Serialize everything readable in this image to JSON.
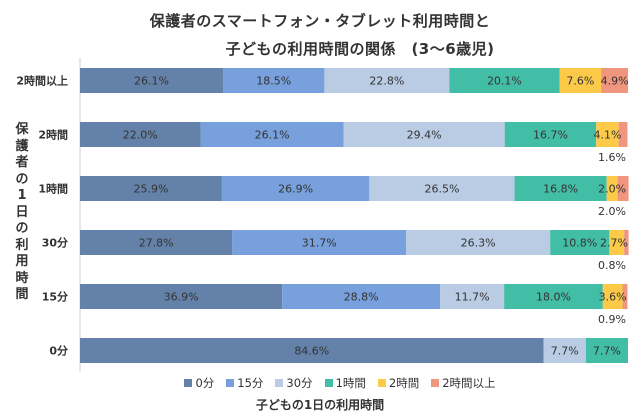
{
  "chart_data": {
    "type": "bar",
    "orientation": "horizontal",
    "stacked": true,
    "title": "保護者のスマートフォン・タブレット利用時間と",
    "title_line2": "子どもの利用時間の関係　(3〜6歳児)",
    "xlabel": "子どもの1日の利用時間",
    "ylabel": "保護者の1日の利用時間",
    "categories": [
      "2時間以上",
      "2時間",
      "1時間",
      "30分",
      "15分",
      "0分"
    ],
    "series": [
      {
        "name": "0分",
        "color": "#6482a9",
        "values": [
          26.1,
          22.0,
          25.9,
          27.8,
          36.9,
          84.6
        ]
      },
      {
        "name": "15分",
        "color": "#77a0dc",
        "values": [
          18.5,
          26.1,
          26.9,
          31.7,
          28.8,
          0
        ]
      },
      {
        "name": "30分",
        "color": "#b9cce4",
        "values": [
          22.8,
          29.4,
          26.5,
          26.3,
          11.7,
          7.7
        ]
      },
      {
        "name": "1時間",
        "color": "#43bea6",
        "values": [
          20.1,
          16.7,
          16.8,
          10.8,
          18.0,
          7.7
        ]
      },
      {
        "name": "2時間",
        "color": "#fcca48",
        "values": [
          7.6,
          4.1,
          2.0,
          2.7,
          3.6,
          0
        ]
      },
      {
        "name": "2時間以上",
        "color": "#f0957e",
        "values": [
          4.9,
          1.6,
          2.0,
          0.8,
          0.9,
          0
        ]
      }
    ],
    "labels": [
      [
        "26.1%",
        "18.5%",
        "22.8%",
        "20.1%",
        "7.6%",
        "4.9%"
      ],
      [
        "22.0%",
        "26.1%",
        "29.4%",
        "16.7%",
        "4.1%",
        "1.6%"
      ],
      [
        "25.9%",
        "26.9%",
        "26.5%",
        "16.8%",
        "2.0%",
        "2.0%"
      ],
      [
        "27.8%",
        "31.7%",
        "26.3%",
        "10.8%",
        "2.7%",
        "0.8%"
      ],
      [
        "36.9%",
        "28.8%",
        "11.7%",
        "18.0%",
        "3.6%",
        "0.9%"
      ],
      [
        "84.6%",
        "",
        "7.7%",
        "7.7%",
        "",
        ""
      ]
    ],
    "xlim": [
      0,
      100
    ],
    "legend_position": "bottom",
    "grid": false
  }
}
